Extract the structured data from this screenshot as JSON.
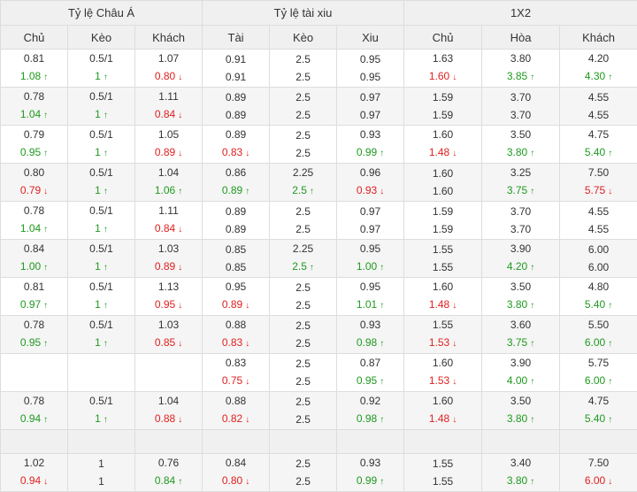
{
  "header": {
    "groups": [
      "Tỷ lệ Châu Á",
      "Tỷ lệ tài xiu",
      "1X2"
    ],
    "columns": [
      "Chủ",
      "Kèo",
      "Khách",
      "Tài",
      "Kèo",
      "Xiu",
      "Chủ",
      "Hòa",
      "Khách"
    ]
  },
  "colors": {
    "up": "#1e9a1e",
    "down": "#e02020",
    "header_bg": "#f0f0f0"
  },
  "arrows": {
    "up": "↑",
    "down": "↓"
  },
  "rows": [
    {
      "type": "odds",
      "cells": [
        [
          {
            "v": "0.81",
            "d": ""
          },
          {
            "v": "1.08",
            "d": "up"
          }
        ],
        [
          {
            "v": "0.5/1",
            "d": ""
          },
          {
            "v": "1",
            "d": "up"
          }
        ],
        [
          {
            "v": "1.07",
            "d": ""
          },
          {
            "v": "0.80",
            "d": "down"
          }
        ],
        [
          {
            "v": "0.91",
            "d": ""
          },
          {
            "v": "0.91",
            "d": ""
          }
        ],
        [
          {
            "v": "2.5",
            "d": ""
          },
          {
            "v": "2.5",
            "d": ""
          }
        ],
        [
          {
            "v": "0.95",
            "d": ""
          },
          {
            "v": "0.95",
            "d": ""
          }
        ],
        [
          {
            "v": "1.63",
            "d": ""
          },
          {
            "v": "1.60",
            "d": "down"
          }
        ],
        [
          {
            "v": "3.80",
            "d": ""
          },
          {
            "v": "3.85",
            "d": "up"
          }
        ],
        [
          {
            "v": "4.20",
            "d": ""
          },
          {
            "v": "4.30",
            "d": "up"
          }
        ]
      ]
    },
    {
      "type": "odds",
      "cells": [
        [
          {
            "v": "0.78",
            "d": ""
          },
          {
            "v": "1.04",
            "d": "up"
          }
        ],
        [
          {
            "v": "0.5/1",
            "d": ""
          },
          {
            "v": "1",
            "d": "up"
          }
        ],
        [
          {
            "v": "1.11",
            "d": ""
          },
          {
            "v": "0.84",
            "d": "down"
          }
        ],
        [
          {
            "v": "0.89",
            "d": ""
          },
          {
            "v": "0.89",
            "d": ""
          }
        ],
        [
          {
            "v": "2.5",
            "d": ""
          },
          {
            "v": "2.5",
            "d": ""
          }
        ],
        [
          {
            "v": "0.97",
            "d": ""
          },
          {
            "v": "0.97",
            "d": ""
          }
        ],
        [
          {
            "v": "1.59",
            "d": ""
          },
          {
            "v": "1.59",
            "d": ""
          }
        ],
        [
          {
            "v": "3.70",
            "d": ""
          },
          {
            "v": "3.70",
            "d": ""
          }
        ],
        [
          {
            "v": "4.55",
            "d": ""
          },
          {
            "v": "4.55",
            "d": ""
          }
        ]
      ]
    },
    {
      "type": "odds",
      "cells": [
        [
          {
            "v": "0.79",
            "d": ""
          },
          {
            "v": "0.95",
            "d": "up"
          }
        ],
        [
          {
            "v": "0.5/1",
            "d": ""
          },
          {
            "v": "1",
            "d": "up"
          }
        ],
        [
          {
            "v": "1.05",
            "d": ""
          },
          {
            "v": "0.89",
            "d": "down"
          }
        ],
        [
          {
            "v": "0.89",
            "d": ""
          },
          {
            "v": "0.83",
            "d": "down"
          }
        ],
        [
          {
            "v": "2.5",
            "d": ""
          },
          {
            "v": "2.5",
            "d": ""
          }
        ],
        [
          {
            "v": "0.93",
            "d": ""
          },
          {
            "v": "0.99",
            "d": "up"
          }
        ],
        [
          {
            "v": "1.60",
            "d": ""
          },
          {
            "v": "1.48",
            "d": "down"
          }
        ],
        [
          {
            "v": "3.50",
            "d": ""
          },
          {
            "v": "3.80",
            "d": "up"
          }
        ],
        [
          {
            "v": "4.75",
            "d": ""
          },
          {
            "v": "5.40",
            "d": "up"
          }
        ]
      ]
    },
    {
      "type": "odds",
      "cells": [
        [
          {
            "v": "0.80",
            "d": ""
          },
          {
            "v": "0.79",
            "d": "down"
          }
        ],
        [
          {
            "v": "0.5/1",
            "d": ""
          },
          {
            "v": "1",
            "d": "up"
          }
        ],
        [
          {
            "v": "1.04",
            "d": ""
          },
          {
            "v": "1.06",
            "d": "up"
          }
        ],
        [
          {
            "v": "0.86",
            "d": ""
          },
          {
            "v": "0.89",
            "d": "up"
          }
        ],
        [
          {
            "v": "2.25",
            "d": ""
          },
          {
            "v": "2.5",
            "d": "up"
          }
        ],
        [
          {
            "v": "0.96",
            "d": ""
          },
          {
            "v": "0.93",
            "d": "down"
          }
        ],
        [
          {
            "v": "1.60",
            "d": ""
          },
          {
            "v": "1.60",
            "d": ""
          }
        ],
        [
          {
            "v": "3.25",
            "d": ""
          },
          {
            "v": "3.75",
            "d": "up"
          }
        ],
        [
          {
            "v": "7.50",
            "d": ""
          },
          {
            "v": "5.75",
            "d": "down"
          }
        ]
      ]
    },
    {
      "type": "odds",
      "cells": [
        [
          {
            "v": "0.78",
            "d": ""
          },
          {
            "v": "1.04",
            "d": "up"
          }
        ],
        [
          {
            "v": "0.5/1",
            "d": ""
          },
          {
            "v": "1",
            "d": "up"
          }
        ],
        [
          {
            "v": "1.11",
            "d": ""
          },
          {
            "v": "0.84",
            "d": "down"
          }
        ],
        [
          {
            "v": "0.89",
            "d": ""
          },
          {
            "v": "0.89",
            "d": ""
          }
        ],
        [
          {
            "v": "2.5",
            "d": ""
          },
          {
            "v": "2.5",
            "d": ""
          }
        ],
        [
          {
            "v": "0.97",
            "d": ""
          },
          {
            "v": "0.97",
            "d": ""
          }
        ],
        [
          {
            "v": "1.59",
            "d": ""
          },
          {
            "v": "1.59",
            "d": ""
          }
        ],
        [
          {
            "v": "3.70",
            "d": ""
          },
          {
            "v": "3.70",
            "d": ""
          }
        ],
        [
          {
            "v": "4.55",
            "d": ""
          },
          {
            "v": "4.55",
            "d": ""
          }
        ]
      ]
    },
    {
      "type": "odds",
      "cells": [
        [
          {
            "v": "0.84",
            "d": ""
          },
          {
            "v": "1.00",
            "d": "up"
          }
        ],
        [
          {
            "v": "0.5/1",
            "d": ""
          },
          {
            "v": "1",
            "d": "up"
          }
        ],
        [
          {
            "v": "1.03",
            "d": ""
          },
          {
            "v": "0.89",
            "d": "down"
          }
        ],
        [
          {
            "v": "0.85",
            "d": ""
          },
          {
            "v": "0.85",
            "d": ""
          }
        ],
        [
          {
            "v": "2.25",
            "d": ""
          },
          {
            "v": "2.5",
            "d": "up"
          }
        ],
        [
          {
            "v": "0.95",
            "d": ""
          },
          {
            "v": "1.00",
            "d": "up"
          }
        ],
        [
          {
            "v": "1.55",
            "d": ""
          },
          {
            "v": "1.55",
            "d": ""
          }
        ],
        [
          {
            "v": "3.90",
            "d": ""
          },
          {
            "v": "4.20",
            "d": "up"
          }
        ],
        [
          {
            "v": "6.00",
            "d": ""
          },
          {
            "v": "6.00",
            "d": ""
          }
        ]
      ]
    },
    {
      "type": "odds",
      "cells": [
        [
          {
            "v": "0.81",
            "d": ""
          },
          {
            "v": "0.97",
            "d": "up"
          }
        ],
        [
          {
            "v": "0.5/1",
            "d": ""
          },
          {
            "v": "1",
            "d": "up"
          }
        ],
        [
          {
            "v": "1.13",
            "d": ""
          },
          {
            "v": "0.95",
            "d": "down"
          }
        ],
        [
          {
            "v": "0.95",
            "d": ""
          },
          {
            "v": "0.89",
            "d": "down"
          }
        ],
        [
          {
            "v": "2.5",
            "d": ""
          },
          {
            "v": "2.5",
            "d": ""
          }
        ],
        [
          {
            "v": "0.95",
            "d": ""
          },
          {
            "v": "1.01",
            "d": "up"
          }
        ],
        [
          {
            "v": "1.60",
            "d": ""
          },
          {
            "v": "1.48",
            "d": "down"
          }
        ],
        [
          {
            "v": "3.50",
            "d": ""
          },
          {
            "v": "3.80",
            "d": "up"
          }
        ],
        [
          {
            "v": "4.80",
            "d": ""
          },
          {
            "v": "5.40",
            "d": "up"
          }
        ]
      ]
    },
    {
      "type": "odds",
      "cells": [
        [
          {
            "v": "0.78",
            "d": ""
          },
          {
            "v": "0.95",
            "d": "up"
          }
        ],
        [
          {
            "v": "0.5/1",
            "d": ""
          },
          {
            "v": "1",
            "d": "up"
          }
        ],
        [
          {
            "v": "1.03",
            "d": ""
          },
          {
            "v": "0.85",
            "d": "down"
          }
        ],
        [
          {
            "v": "0.88",
            "d": ""
          },
          {
            "v": "0.83",
            "d": "down"
          }
        ],
        [
          {
            "v": "2.5",
            "d": ""
          },
          {
            "v": "2.5",
            "d": ""
          }
        ],
        [
          {
            "v": "0.93",
            "d": ""
          },
          {
            "v": "0.98",
            "d": "up"
          }
        ],
        [
          {
            "v": "1.55",
            "d": ""
          },
          {
            "v": "1.53",
            "d": "down"
          }
        ],
        [
          {
            "v": "3.60",
            "d": ""
          },
          {
            "v": "3.75",
            "d": "up"
          }
        ],
        [
          {
            "v": "5.50",
            "d": ""
          },
          {
            "v": "6.00",
            "d": "up"
          }
        ]
      ]
    },
    {
      "type": "odds",
      "cells": [
        [],
        [],
        [],
        [
          {
            "v": "0.83",
            "d": ""
          },
          {
            "v": "0.75",
            "d": "down"
          }
        ],
        [
          {
            "v": "2.5",
            "d": ""
          },
          {
            "v": "2.5",
            "d": ""
          }
        ],
        [
          {
            "v": "0.87",
            "d": ""
          },
          {
            "v": "0.95",
            "d": "up"
          }
        ],
        [
          {
            "v": "1.60",
            "d": ""
          },
          {
            "v": "1.53",
            "d": "down"
          }
        ],
        [
          {
            "v": "3.90",
            "d": ""
          },
          {
            "v": "4.00",
            "d": "up"
          }
        ],
        [
          {
            "v": "5.75",
            "d": ""
          },
          {
            "v": "6.00",
            "d": "up"
          }
        ]
      ]
    },
    {
      "type": "odds",
      "cells": [
        [
          {
            "v": "0.78",
            "d": ""
          },
          {
            "v": "0.94",
            "d": "up"
          }
        ],
        [
          {
            "v": "0.5/1",
            "d": ""
          },
          {
            "v": "1",
            "d": "up"
          }
        ],
        [
          {
            "v": "1.04",
            "d": ""
          },
          {
            "v": "0.88",
            "d": "down"
          }
        ],
        [
          {
            "v": "0.88",
            "d": ""
          },
          {
            "v": "0.82",
            "d": "down"
          }
        ],
        [
          {
            "v": "2.5",
            "d": ""
          },
          {
            "v": "2.5",
            "d": ""
          }
        ],
        [
          {
            "v": "0.92",
            "d": ""
          },
          {
            "v": "0.98",
            "d": "up"
          }
        ],
        [
          {
            "v": "1.60",
            "d": ""
          },
          {
            "v": "1.48",
            "d": "down"
          }
        ],
        [
          {
            "v": "3.50",
            "d": ""
          },
          {
            "v": "3.80",
            "d": "up"
          }
        ],
        [
          {
            "v": "4.75",
            "d": ""
          },
          {
            "v": "5.40",
            "d": "up"
          }
        ]
      ]
    },
    {
      "type": "gap"
    },
    {
      "type": "odds",
      "cells": [
        [
          {
            "v": "1.02",
            "d": ""
          },
          {
            "v": "0.94",
            "d": "down"
          }
        ],
        [
          {
            "v": "1",
            "d": ""
          },
          {
            "v": "1",
            "d": ""
          }
        ],
        [
          {
            "v": "0.76",
            "d": ""
          },
          {
            "v": "0.84",
            "d": "up"
          }
        ],
        [
          {
            "v": "0.84",
            "d": ""
          },
          {
            "v": "0.80",
            "d": "down"
          }
        ],
        [
          {
            "v": "2.5",
            "d": ""
          },
          {
            "v": "2.5",
            "d": ""
          }
        ],
        [
          {
            "v": "0.93",
            "d": ""
          },
          {
            "v": "0.99",
            "d": "up"
          }
        ],
        [
          {
            "v": "1.55",
            "d": ""
          },
          {
            "v": "1.55",
            "d": ""
          }
        ],
        [
          {
            "v": "3.40",
            "d": ""
          },
          {
            "v": "3.80",
            "d": "up"
          }
        ],
        [
          {
            "v": "7.50",
            "d": ""
          },
          {
            "v": "6.00",
            "d": "down"
          }
        ]
      ]
    }
  ]
}
